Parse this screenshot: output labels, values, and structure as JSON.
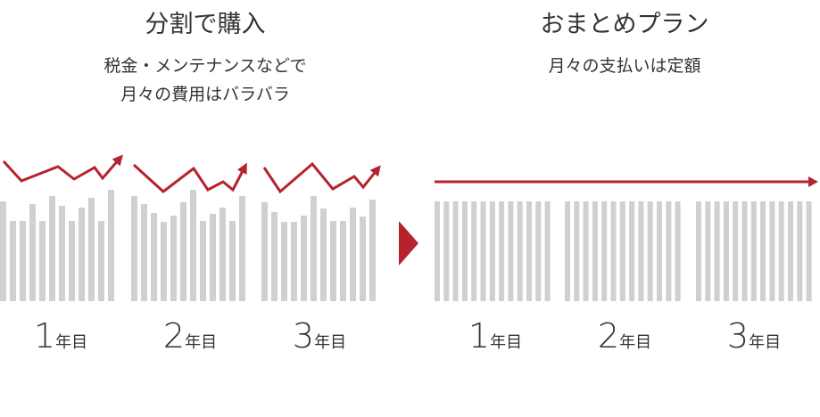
{
  "left": {
    "title": "分割で購入",
    "subtitle": [
      "税金・メンテナンスなどで",
      "月々の費用はバラバラ"
    ],
    "years": [
      {
        "number": "1",
        "unit": "年目"
      },
      {
        "number": "2",
        "unit": "年目"
      },
      {
        "number": "3",
        "unit": "年目"
      }
    ]
  },
  "right": {
    "title": "おまとめプラン",
    "subtitle": [
      "月々の支払いは定額"
    ],
    "years": [
      {
        "number": "1",
        "unit": "年目"
      },
      {
        "number": "2",
        "unit": "年目"
      },
      {
        "number": "3",
        "unit": "年目"
      }
    ]
  }
}
